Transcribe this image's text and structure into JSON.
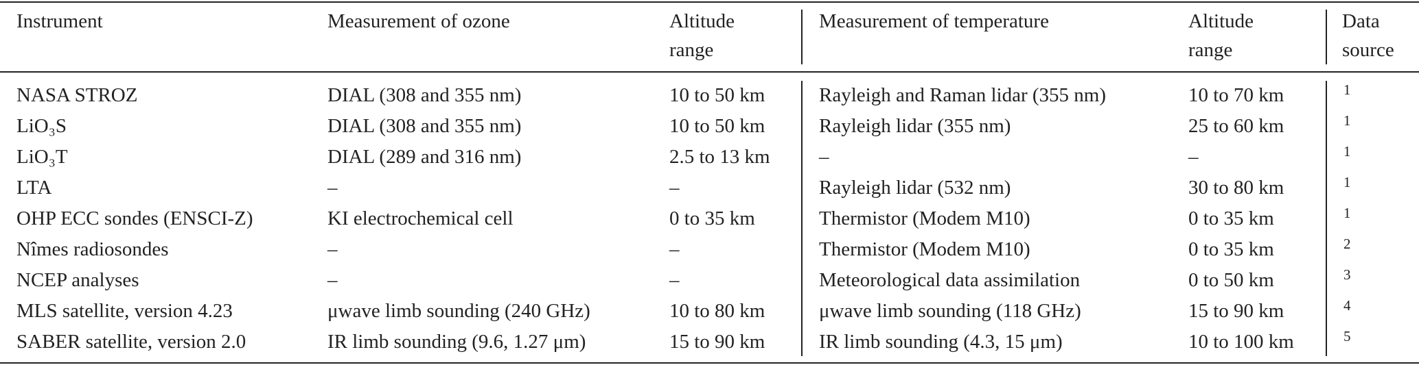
{
  "table": {
    "header": [
      "Instrument",
      "Measurement of ozone",
      "Altitude range",
      "Measurement of temperature",
      "Altitude range",
      "Data source"
    ],
    "rows": [
      [
        "NASA STROZ",
        "DIAL (308 and 355 nm)",
        "10 to 50 km",
        "Rayleigh and Raman lidar (355 nm)",
        "10 to 70 km",
        1
      ],
      [
        "LiO₃S",
        "DIAL (308 and 355 nm)",
        "10 to 50 km",
        "Rayleigh lidar (355 nm)",
        "25 to 60 km",
        1
      ],
      [
        "LiO₃T",
        "DIAL (289 and 316 nm)",
        "2.5 to 13 km",
        "–",
        "–",
        1
      ],
      [
        "LTA",
        "–",
        "–",
        "Rayleigh lidar (532 nm)",
        "30 to 80 km",
        1
      ],
      [
        "OHP ECC sondes (ENSCI-Z)",
        "KI electrochemical cell",
        "0 to 35 km",
        "Thermistor (Modem M10)",
        "0 to 35 km",
        1
      ],
      [
        "Nîmes radiosondes",
        "–",
        "–",
        "Thermistor (Modem M10)",
        "0 to 35 km",
        2
      ],
      [
        "NCEP analyses",
        "–",
        "–",
        "Meteorological data assimilation",
        "0 to 50 km",
        3
      ],
      [
        "MLS satellite, version 4.23",
        "μwave limb sounding (240 GHz)",
        "10 to 80 km",
        "μwave limb sounding (118 GHz)",
        "15 to 90 km",
        4
      ],
      [
        "SABER satellite, version 2.0",
        "IR limb sounding (9.6, 1.27 μm)",
        "15 to 90 km",
        "IR limb sounding (4.3, 15 μm)",
        "10 to 100 km",
        5
      ]
    ]
  }
}
